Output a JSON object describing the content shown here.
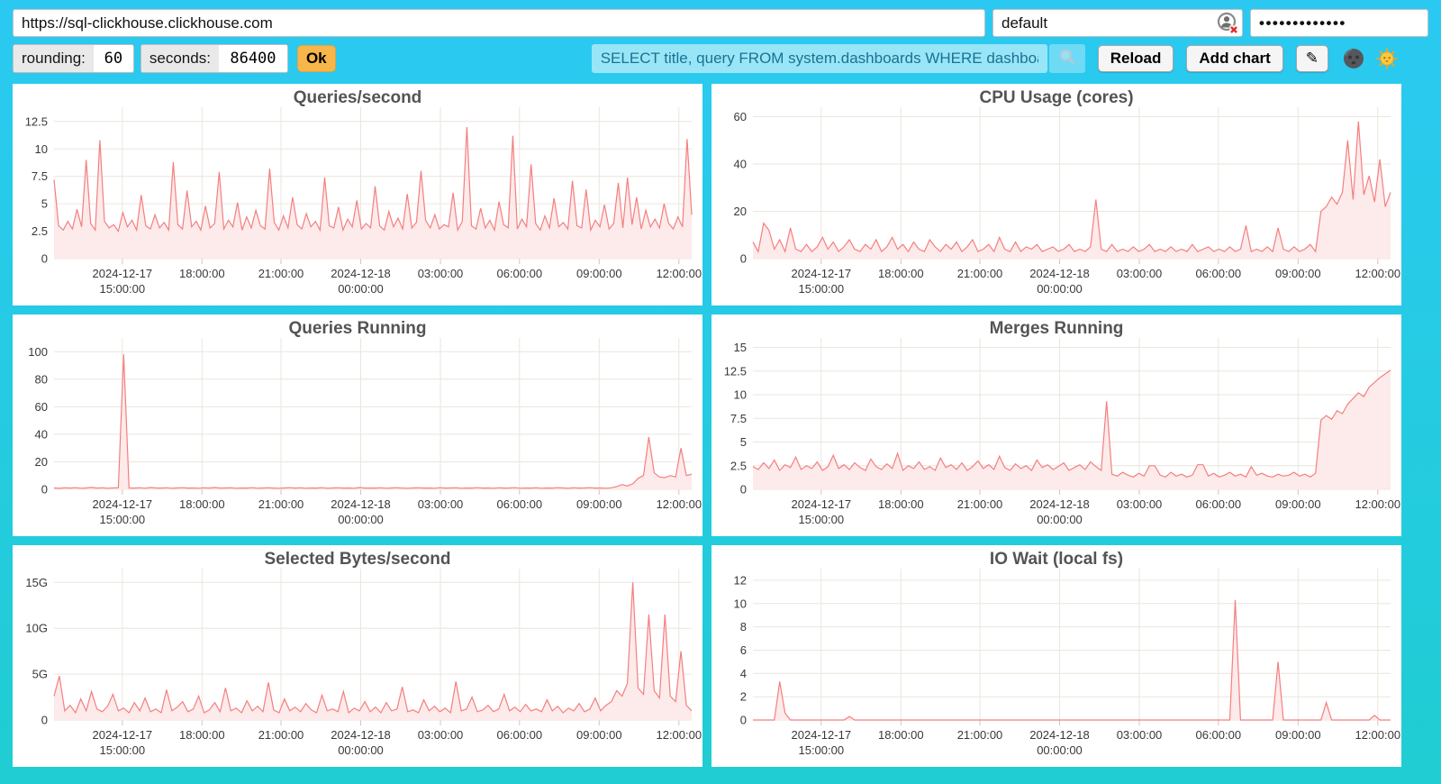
{
  "connection": {
    "url": "https://sql-clickhouse.clickhouse.com",
    "user": "default",
    "password_masked": "•••••••••••••"
  },
  "toolbar": {
    "rounding_label": "rounding:",
    "rounding_value": "60",
    "seconds_label": "seconds:",
    "seconds_value": "86400",
    "ok_label": "Ok",
    "search_value": "SELECT title, query FROM system.dashboards WHERE dashboard = '",
    "reload_label": "Reload",
    "add_chart_label": "Add chart",
    "edit_icon_glyph": "✎",
    "icons": {
      "search": "magnifier-icon",
      "edit": "pencil-icon",
      "theme_dark": "new-moon-face-icon",
      "theme_light": "sun-face-icon",
      "credential": "user-circle-x-icon"
    }
  },
  "colors": {
    "background_top": "#2bc9f2",
    "background_bottom": "#1fcdd2",
    "panel": "#ffffff",
    "series_line": "#f47f7f",
    "series_fill": "#fdeaea",
    "grid": "#e9e6dc",
    "tick": "#e3bcbc",
    "axis_text": "#383838",
    "title_text": "#545454",
    "ok_button": "#f6b64b",
    "search_text": "#19738f"
  },
  "chart_data": [
    {
      "type": "area",
      "title": "Queries/second",
      "ylim": [
        0,
        13.8
      ],
      "yticks": [
        [
          12.5,
          "12.5"
        ],
        [
          10,
          "10"
        ],
        [
          7.5,
          "7.5"
        ],
        [
          5,
          "5"
        ],
        [
          2.5,
          "2.5"
        ],
        [
          0,
          "0"
        ]
      ],
      "xticks": [
        {
          "t": 0.107,
          "lines": [
            "2024-12-17",
            "15:00:00"
          ]
        },
        {
          "t": 0.232,
          "lines": [
            "18:00:00"
          ]
        },
        {
          "t": 0.356,
          "lines": [
            "21:00:00"
          ]
        },
        {
          "t": 0.481,
          "lines": [
            "2024-12-18",
            "00:00:00"
          ]
        },
        {
          "t": 0.606,
          "lines": [
            "03:00:00"
          ]
        },
        {
          "t": 0.73,
          "lines": [
            "06:00:00"
          ]
        },
        {
          "t": 0.855,
          "lines": [
            "09:00:00"
          ]
        },
        {
          "t": 0.98,
          "lines": [
            "12:00:00"
          ]
        }
      ],
      "values": [
        7.2,
        3.0,
        2.6,
        3.4,
        2.7,
        4.5,
        2.9,
        9.0,
        3.2,
        2.6,
        10.8,
        3.4,
        2.8,
        3.1,
        2.5,
        4.2,
        2.9,
        3.5,
        2.6,
        5.8,
        3.0,
        2.7,
        4.0,
        2.8,
        3.3,
        2.6,
        8.8,
        3.1,
        2.7,
        6.2,
        2.9,
        3.4,
        2.6,
        4.8,
        2.8,
        3.2,
        7.9,
        2.7,
        3.5,
        2.9,
        5.1,
        2.6,
        3.8,
        2.8,
        4.4,
        3.0,
        2.7,
        8.2,
        3.3,
        2.6,
        3.9,
        2.8,
        5.6,
        3.1,
        2.7,
        4.1,
        2.9,
        3.4,
        2.6,
        7.4,
        3.0,
        2.8,
        4.7,
        2.6,
        3.6,
        2.9,
        5.3,
        2.7,
        3.2,
        2.8,
        6.6,
        3.0,
        2.6,
        4.3,
        2.9,
        3.7,
        2.7,
        5.9,
        2.8,
        3.3,
        8.0,
        3.5,
        2.8,
        4.0,
        2.7,
        3.1,
        2.9,
        6.0,
        2.6,
        3.4,
        12.0,
        3.0,
        2.7,
        4.6,
        2.8,
        3.5,
        2.6,
        5.2,
        3.1,
        2.8,
        11.2,
        2.7,
        3.6,
        2.9,
        8.6,
        3.2,
        2.6,
        3.9,
        2.8,
        5.5,
        2.9,
        3.3,
        2.7,
        7.1,
        3.0,
        2.8,
        6.3,
        2.6,
        3.5,
        2.9,
        4.9,
        2.7,
        3.2,
        6.9,
        2.8,
        7.4,
        3.1,
        5.6,
        2.7,
        4.4,
        2.9,
        3.6,
        2.8,
        5.0,
        3.2,
        2.7,
        3.8,
        2.9,
        10.9,
        4.0
      ]
    },
    {
      "type": "area",
      "title": "CPU Usage (cores)",
      "ylim": [
        0,
        64
      ],
      "yticks": [
        [
          60,
          "60"
        ],
        [
          40,
          "40"
        ],
        [
          20,
          "20"
        ],
        [
          0,
          "0"
        ]
      ],
      "xticks": [
        {
          "t": 0.107,
          "lines": [
            "2024-12-17",
            "15:00:00"
          ]
        },
        {
          "t": 0.232,
          "lines": [
            "18:00:00"
          ]
        },
        {
          "t": 0.356,
          "lines": [
            "21:00:00"
          ]
        },
        {
          "t": 0.481,
          "lines": [
            "2024-12-18",
            "00:00:00"
          ]
        },
        {
          "t": 0.606,
          "lines": [
            "03:00:00"
          ]
        },
        {
          "t": 0.73,
          "lines": [
            "06:00:00"
          ]
        },
        {
          "t": 0.855,
          "lines": [
            "09:00:00"
          ]
        },
        {
          "t": 0.98,
          "lines": [
            "12:00:00"
          ]
        }
      ],
      "values": [
        7,
        3,
        15,
        12,
        4,
        8,
        3,
        13,
        4,
        3,
        6,
        3,
        5,
        9,
        4,
        7,
        3,
        5,
        8,
        4,
        3,
        6,
        4,
        8,
        3,
        5,
        9,
        4,
        6,
        3,
        7,
        4,
        3,
        8,
        5,
        3,
        6,
        4,
        7,
        3,
        5,
        8,
        3,
        4,
        6,
        3,
        9,
        4,
        3,
        7,
        3,
        5,
        4,
        6,
        3,
        4,
        5,
        3,
        4,
        6,
        3,
        4,
        3,
        5,
        25,
        4,
        3,
        6,
        3,
        4,
        3,
        5,
        3,
        4,
        6,
        3,
        4,
        3,
        5,
        3,
        4,
        3,
        6,
        3,
        4,
        5,
        3,
        4,
        3,
        5,
        3,
        4,
        14,
        3,
        4,
        3,
        5,
        3,
        13,
        4,
        3,
        5,
        3,
        4,
        6,
        3,
        20,
        22,
        26,
        23,
        28,
        50,
        25,
        58,
        27,
        35,
        24,
        42,
        22,
        28
      ]
    },
    {
      "type": "area",
      "title": "Queries Running",
      "ylim": [
        0,
        110
      ],
      "yticks": [
        [
          100,
          "100"
        ],
        [
          80,
          "80"
        ],
        [
          60,
          "60"
        ],
        [
          40,
          "40"
        ],
        [
          20,
          "20"
        ],
        [
          0,
          "0"
        ]
      ],
      "xticks": [
        {
          "t": 0.107,
          "lines": [
            "2024-12-17",
            "15:00:00"
          ]
        },
        {
          "t": 0.232,
          "lines": [
            "18:00:00"
          ]
        },
        {
          "t": 0.356,
          "lines": [
            "21:00:00"
          ]
        },
        {
          "t": 0.481,
          "lines": [
            "2024-12-18",
            "00:00:00"
          ]
        },
        {
          "t": 0.606,
          "lines": [
            "03:00:00"
          ]
        },
        {
          "t": 0.73,
          "lines": [
            "06:00:00"
          ]
        },
        {
          "t": 0.855,
          "lines": [
            "09:00:00"
          ]
        },
        {
          "t": 0.98,
          "lines": [
            "12:00:00"
          ]
        }
      ],
      "values": [
        1.0,
        0.7,
        1.1,
        0.9,
        1.2,
        0.8,
        1.0,
        1.4,
        0.9,
        1.1,
        0.8,
        1.0,
        1.2,
        98,
        1.0,
        0.9,
        1.1,
        0.8,
        1.3,
        1.0,
        0.9,
        1.1,
        0.8,
        1.0,
        1.2,
        0.9,
        1.0,
        0.8,
        1.1,
        0.9,
        1.3,
        0.9,
        1.0,
        1.1,
        0.8,
        1.0,
        0.9,
        1.2,
        0.8,
        1.0,
        1.1,
        0.9,
        0.8,
        1.0,
        1.2,
        0.9,
        1.1,
        0.8,
        1.0,
        0.9,
        1.2,
        0.8,
        1.0,
        1.1,
        0.9,
        1.0,
        0.8,
        1.3,
        0.9,
        1.0,
        0.9,
        1.1,
        0.8,
        1.0,
        1.2,
        0.9,
        0.8,
        1.0,
        1.1,
        0.9,
        1.0,
        0.8,
        1.2,
        0.9,
        1.0,
        1.1,
        0.8,
        1.0,
        0.9,
        1.2,
        0.9,
        1.0,
        0.8,
        1.1,
        0.9,
        1.0,
        1.2,
        0.8,
        1.0,
        0.9,
        1.1,
        0.8,
        1.0,
        0.9,
        1.2,
        1.0,
        0.8,
        1.1,
        0.9,
        1.0,
        1.2,
        0.9,
        1.0,
        0.8,
        1.1,
        2.0,
        3.5,
        2.5,
        4.0,
        8.0,
        10.0,
        38.0,
        12.0,
        9.0,
        8.5,
        10.0,
        9.0,
        30.0,
        10.0,
        11.0
      ]
    },
    {
      "type": "area",
      "title": "Merges Running",
      "ylim": [
        0,
        16
      ],
      "yticks": [
        [
          15,
          "15"
        ],
        [
          12.5,
          "12.5"
        ],
        [
          10,
          "10"
        ],
        [
          7.5,
          "7.5"
        ],
        [
          5,
          "5"
        ],
        [
          2.5,
          "2.5"
        ],
        [
          0,
          "0"
        ]
      ],
      "xticks": [
        {
          "t": 0.107,
          "lines": [
            "2024-12-17",
            "15:00:00"
          ]
        },
        {
          "t": 0.232,
          "lines": [
            "18:00:00"
          ]
        },
        {
          "t": 0.356,
          "lines": [
            "21:00:00"
          ]
        },
        {
          "t": 0.481,
          "lines": [
            "2024-12-18",
            "00:00:00"
          ]
        },
        {
          "t": 0.606,
          "lines": [
            "03:00:00"
          ]
        },
        {
          "t": 0.73,
          "lines": [
            "06:00:00"
          ]
        },
        {
          "t": 0.855,
          "lines": [
            "09:00:00"
          ]
        },
        {
          "t": 0.98,
          "lines": [
            "12:00:00"
          ]
        }
      ],
      "values": [
        2.4,
        2.1,
        2.8,
        2.2,
        3.1,
        2.0,
        2.6,
        2.3,
        3.4,
        2.1,
        2.5,
        2.2,
        2.9,
        2.0,
        2.4,
        3.6,
        2.2,
        2.6,
        2.1,
        2.8,
        2.3,
        2.0,
        3.2,
        2.4,
        2.1,
        2.7,
        2.2,
        3.8,
        2.0,
        2.5,
        2.2,
        2.9,
        2.1,
        2.4,
        2.0,
        3.3,
        2.3,
        2.6,
        2.1,
        2.8,
        2.0,
        2.4,
        3.0,
        2.2,
        2.6,
        2.1,
        3.5,
        2.3,
        2.0,
        2.7,
        2.2,
        2.5,
        2.0,
        3.1,
        2.3,
        2.6,
        2.1,
        2.4,
        2.8,
        2.0,
        2.3,
        2.6,
        2.1,
        2.9,
        2.4,
        2.0,
        9.3,
        1.6,
        1.4,
        1.8,
        1.5,
        1.3,
        1.7,
        1.4,
        2.5,
        2.5,
        1.5,
        1.3,
        1.8,
        1.4,
        1.6,
        1.3,
        1.5,
        2.6,
        2.6,
        1.4,
        1.7,
        1.3,
        1.5,
        1.8,
        1.4,
        1.6,
        1.3,
        2.4,
        1.5,
        1.7,
        1.4,
        1.3,
        1.6,
        1.4,
        1.5,
        1.8,
        1.4,
        1.6,
        1.3,
        1.7,
        7.3,
        7.8,
        7.4,
        8.3,
        8.0,
        9.0,
        9.6,
        10.2,
        9.8,
        10.8,
        11.3,
        11.8,
        12.2,
        12.6
      ]
    },
    {
      "type": "area",
      "title": "Selected Bytes/second",
      "ylim": [
        0,
        16.5
      ],
      "yticks": [
        [
          15,
          "15G"
        ],
        [
          10,
          "10G"
        ],
        [
          5,
          "5G"
        ],
        [
          0,
          "0"
        ]
      ],
      "xticks": [
        {
          "t": 0.107,
          "lines": [
            "2024-12-17",
            "15:00:00"
          ]
        },
        {
          "t": 0.232,
          "lines": [
            "18:00:00"
          ]
        },
        {
          "t": 0.356,
          "lines": [
            "21:00:00"
          ]
        },
        {
          "t": 0.481,
          "lines": [
            "2024-12-18",
            "00:00:00"
          ]
        },
        {
          "t": 0.606,
          "lines": [
            "03:00:00"
          ]
        },
        {
          "t": 0.73,
          "lines": [
            "06:00:00"
          ]
        },
        {
          "t": 0.855,
          "lines": [
            "09:00:00"
          ]
        },
        {
          "t": 0.98,
          "lines": [
            "12:00:00"
          ]
        }
      ],
      "values": [
        2.6,
        4.8,
        1.0,
        1.6,
        0.8,
        2.3,
        1.0,
        3.1,
        1.2,
        0.9,
        1.5,
        2.8,
        1.0,
        1.3,
        0.8,
        1.9,
        1.0,
        2.4,
        0.9,
        1.2,
        0.8,
        3.3,
        1.0,
        1.4,
        2.0,
        0.9,
        1.2,
        2.6,
        0.8,
        1.1,
        1.9,
        0.9,
        3.5,
        1.0,
        1.3,
        0.8,
        2.1,
        1.0,
        1.5,
        0.9,
        4.1,
        1.1,
        0.8,
        2.3,
        1.0,
        1.4,
        0.9,
        1.8,
        1.1,
        0.8,
        2.7,
        1.0,
        1.2,
        0.9,
        3.1,
        0.8,
        1.3,
        1.0,
        2.0,
        0.9,
        1.4,
        0.8,
        1.9,
        1.0,
        1.2,
        3.6,
        0.9,
        1.1,
        0.8,
        2.2,
        1.0,
        1.5,
        0.9,
        1.3,
        0.8,
        4.2,
        1.0,
        1.2,
        2.5,
        0.9,
        1.1,
        1.6,
        0.9,
        1.2,
        2.8,
        1.0,
        1.4,
        0.9,
        1.7,
        1.0,
        1.2,
        0.9,
        2.2,
        1.0,
        1.5,
        0.8,
        1.3,
        1.0,
        1.8,
        0.9,
        1.2,
        2.4,
        1.0,
        1.6,
        2.0,
        3.2,
        2.6,
        4.0,
        15.0,
        3.5,
        2.8,
        11.5,
        3.2,
        2.4,
        11.5,
        2.6,
        2.0,
        7.5,
        1.6,
        1.0
      ]
    },
    {
      "type": "area",
      "title": "IO Wait (local fs)",
      "ylim": [
        0,
        13
      ],
      "yticks": [
        [
          12,
          "12"
        ],
        [
          10,
          "10"
        ],
        [
          8,
          "8"
        ],
        [
          6,
          "6"
        ],
        [
          4,
          "4"
        ],
        [
          2,
          "2"
        ],
        [
          0,
          "0"
        ]
      ],
      "xticks": [
        {
          "t": 0.107,
          "lines": [
            "2024-12-17",
            "15:00:00"
          ]
        },
        {
          "t": 0.232,
          "lines": [
            "18:00:00"
          ]
        },
        {
          "t": 0.356,
          "lines": [
            "21:00:00"
          ]
        },
        {
          "t": 0.481,
          "lines": [
            "2024-12-18",
            "00:00:00"
          ]
        },
        {
          "t": 0.606,
          "lines": [
            "03:00:00"
          ]
        },
        {
          "t": 0.73,
          "lines": [
            "06:00:00"
          ]
        },
        {
          "t": 0.855,
          "lines": [
            "09:00:00"
          ]
        },
        {
          "t": 0.98,
          "lines": [
            "12:00:00"
          ]
        }
      ],
      "values": [
        0,
        0,
        0,
        0,
        0,
        3.3,
        0.6,
        0,
        0,
        0,
        0,
        0,
        0,
        0,
        0,
        0,
        0,
        0,
        0.3,
        0,
        0,
        0,
        0,
        0,
        0,
        0,
        0,
        0,
        0,
        0,
        0,
        0,
        0,
        0,
        0,
        0,
        0,
        0,
        0,
        0,
        0,
        0,
        0,
        0,
        0,
        0,
        0,
        0,
        0,
        0,
        0,
        0,
        0,
        0,
        0,
        0,
        0,
        0,
        0,
        0,
        0,
        0,
        0,
        0,
        0,
        0,
        0,
        0,
        0,
        0,
        0,
        0,
        0,
        0,
        0,
        0,
        0,
        0,
        0,
        0,
        0,
        0,
        0,
        0,
        0,
        0,
        0,
        0,
        0,
        0,
        10.3,
        0,
        0,
        0,
        0,
        0,
        0,
        0,
        5.0,
        0,
        0,
        0,
        0,
        0,
        0,
        0,
        0,
        1.5,
        0,
        0,
        0,
        0,
        0,
        0,
        0,
        0,
        0.4,
        0,
        0,
        0
      ]
    }
  ]
}
